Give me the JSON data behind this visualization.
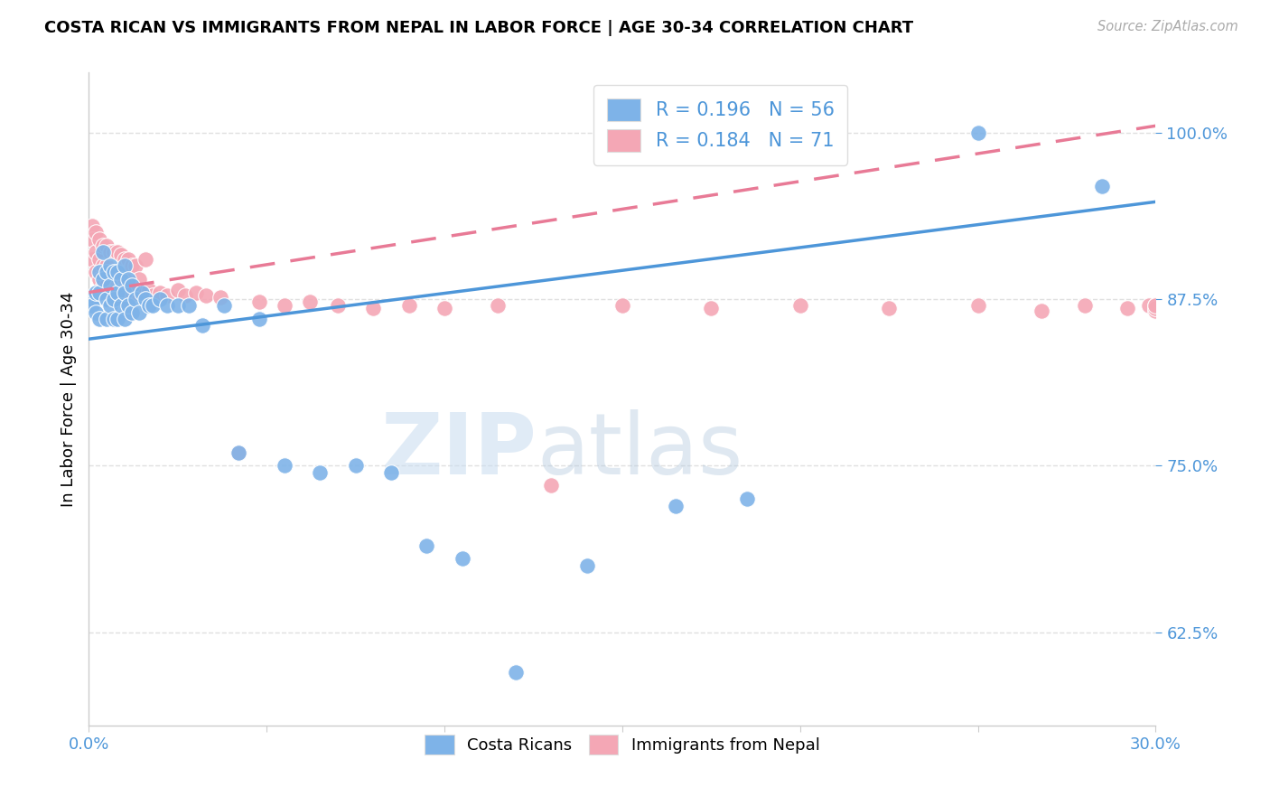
{
  "title": "COSTA RICAN VS IMMIGRANTS FROM NEPAL IN LABOR FORCE | AGE 30-34 CORRELATION CHART",
  "source": "Source: ZipAtlas.com",
  "ylabel": "In Labor Force | Age 30-34",
  "yticks": [
    0.625,
    0.75,
    0.875,
    1.0
  ],
  "ytick_labels": [
    "62.5%",
    "75.0%",
    "87.5%",
    "100.0%"
  ],
  "xmin": 0.0,
  "xmax": 0.3,
  "ymin": 0.555,
  "ymax": 1.045,
  "blue_color": "#7EB3E8",
  "pink_color": "#F4A7B5",
  "blue_line_color": "#4D96D9",
  "pink_line_color": "#E87A96",
  "axis_label_color": "#4D96D9",
  "grid_color": "#E0E0E0",
  "watermark_zip": "ZIP",
  "watermark_atlas": "atlas",
  "blue_scatter_x": [
    0.001,
    0.001,
    0.002,
    0.002,
    0.003,
    0.003,
    0.003,
    0.004,
    0.004,
    0.005,
    0.005,
    0.005,
    0.006,
    0.006,
    0.006,
    0.007,
    0.007,
    0.007,
    0.008,
    0.008,
    0.008,
    0.009,
    0.009,
    0.01,
    0.01,
    0.01,
    0.011,
    0.011,
    0.012,
    0.012,
    0.013,
    0.014,
    0.015,
    0.016,
    0.017,
    0.018,
    0.02,
    0.022,
    0.025,
    0.028,
    0.032,
    0.038,
    0.042,
    0.048,
    0.055,
    0.065,
    0.075,
    0.085,
    0.095,
    0.105,
    0.12,
    0.14,
    0.165,
    0.185,
    0.25,
    0.285
  ],
  "blue_scatter_y": [
    0.875,
    0.87,
    0.88,
    0.865,
    0.895,
    0.88,
    0.86,
    0.91,
    0.89,
    0.895,
    0.875,
    0.86,
    0.9,
    0.885,
    0.87,
    0.895,
    0.875,
    0.86,
    0.895,
    0.88,
    0.86,
    0.89,
    0.87,
    0.9,
    0.88,
    0.86,
    0.89,
    0.87,
    0.885,
    0.865,
    0.875,
    0.865,
    0.88,
    0.875,
    0.87,
    0.87,
    0.875,
    0.87,
    0.87,
    0.87,
    0.855,
    0.87,
    0.76,
    0.86,
    0.75,
    0.745,
    0.75,
    0.745,
    0.69,
    0.68,
    0.595,
    0.675,
    0.72,
    0.725,
    1.0,
    0.96
  ],
  "pink_scatter_x": [
    0.001,
    0.001,
    0.001,
    0.002,
    0.002,
    0.002,
    0.003,
    0.003,
    0.003,
    0.004,
    0.004,
    0.004,
    0.005,
    0.005,
    0.005,
    0.006,
    0.006,
    0.006,
    0.007,
    0.007,
    0.007,
    0.008,
    0.008,
    0.008,
    0.009,
    0.009,
    0.009,
    0.01,
    0.01,
    0.01,
    0.011,
    0.011,
    0.012,
    0.012,
    0.013,
    0.013,
    0.014,
    0.015,
    0.016,
    0.017,
    0.018,
    0.02,
    0.022,
    0.025,
    0.027,
    0.03,
    0.033,
    0.037,
    0.042,
    0.048,
    0.055,
    0.062,
    0.07,
    0.08,
    0.09,
    0.1,
    0.115,
    0.13,
    0.15,
    0.175,
    0.2,
    0.225,
    0.25,
    0.268,
    0.28,
    0.292,
    0.298,
    0.3,
    0.3,
    0.3,
    0.3
  ],
  "pink_scatter_y": [
    0.93,
    0.92,
    0.905,
    0.925,
    0.91,
    0.895,
    0.92,
    0.905,
    0.89,
    0.915,
    0.9,
    0.885,
    0.915,
    0.9,
    0.885,
    0.91,
    0.895,
    0.88,
    0.91,
    0.895,
    0.88,
    0.91,
    0.895,
    0.878,
    0.908,
    0.893,
    0.878,
    0.905,
    0.89,
    0.875,
    0.905,
    0.885,
    0.9,
    0.88,
    0.9,
    0.88,
    0.89,
    0.88,
    0.905,
    0.882,
    0.878,
    0.88,
    0.878,
    0.882,
    0.878,
    0.88,
    0.878,
    0.876,
    0.76,
    0.873,
    0.87,
    0.873,
    0.87,
    0.868,
    0.87,
    0.868,
    0.87,
    0.735,
    0.87,
    0.868,
    0.87,
    0.868,
    0.87,
    0.866,
    0.87,
    0.868,
    0.87,
    0.866,
    0.87,
    0.868,
    0.87
  ],
  "blue_line_x0": 0.0,
  "blue_line_x1": 0.3,
  "blue_line_y0": 0.845,
  "blue_line_y1": 0.948,
  "pink_line_x0": 0.0,
  "pink_line_x1": 0.3,
  "pink_line_y0": 0.88,
  "pink_line_y1": 1.005
}
